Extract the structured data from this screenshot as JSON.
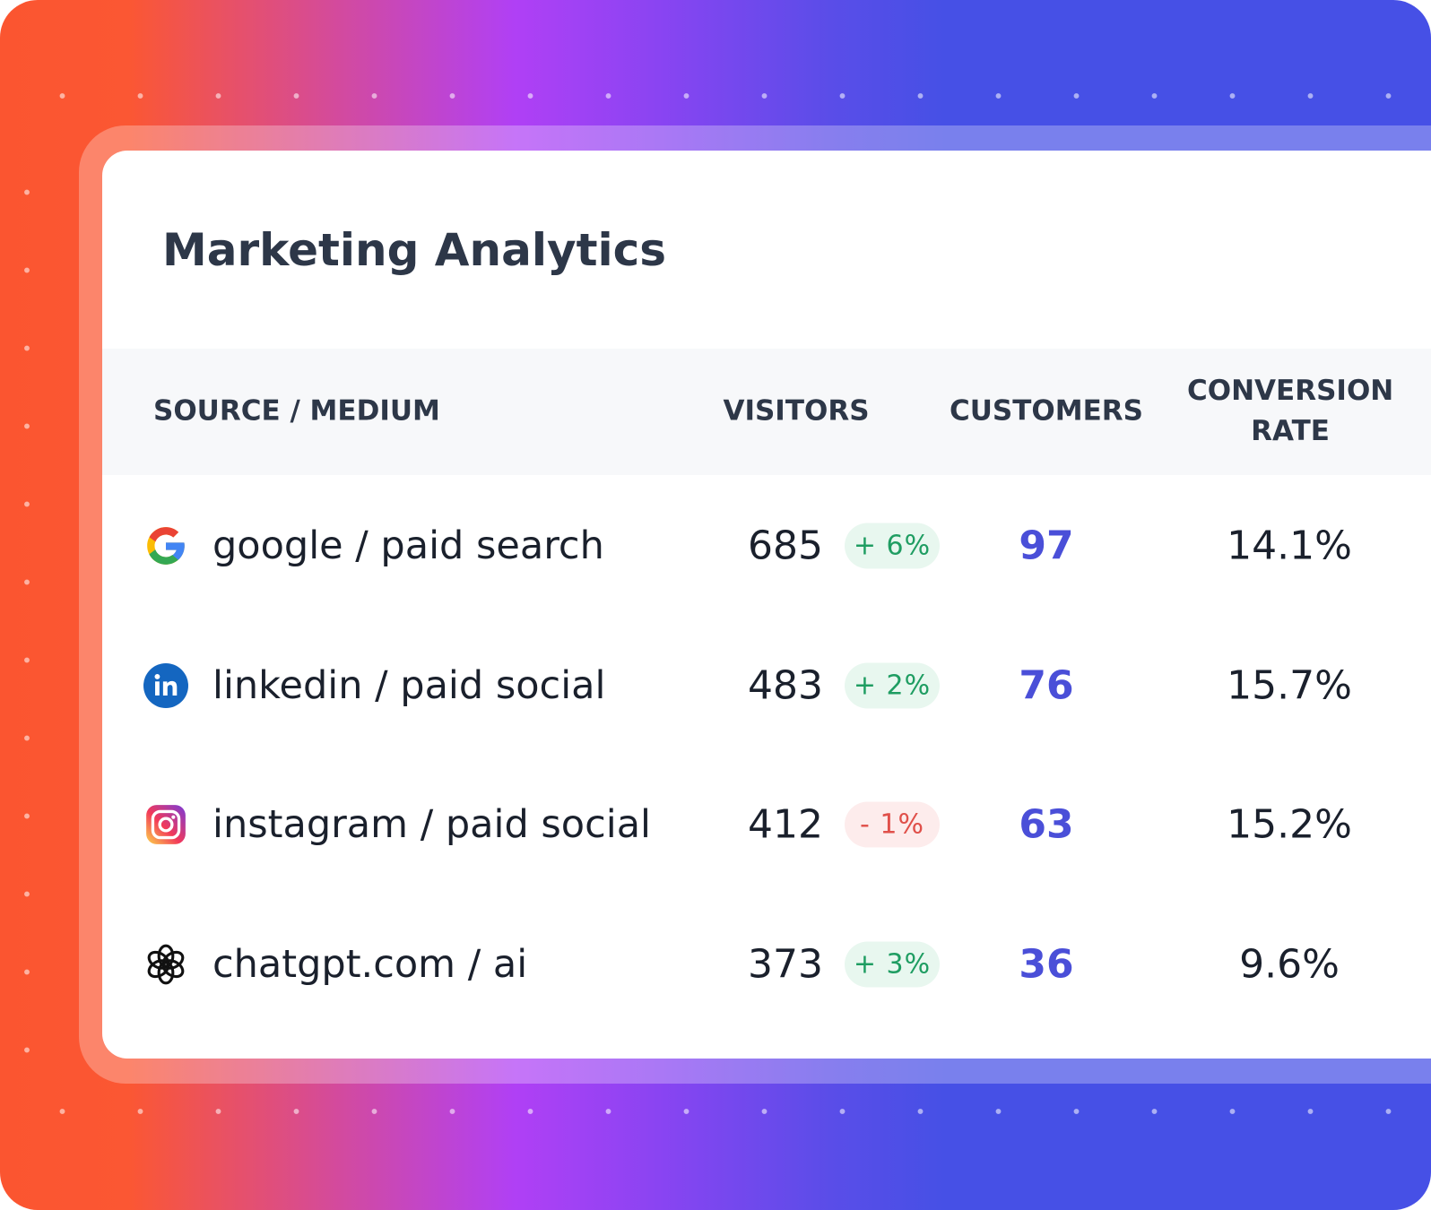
{
  "header": {
    "title": "Marketing Analytics"
  },
  "table": {
    "columns": [
      "SOURCE / MEDIUM",
      "VISITORS",
      "CUSTOMERS",
      "CONVERSION RATE"
    ],
    "rows": [
      {
        "source": "google / paid search",
        "visitors": "685",
        "change": "+ 6%",
        "customers": "97",
        "conversion_rate": "14.1%"
      },
      {
        "source": "linkedin / paid social",
        "visitors": "483",
        "change": "+ 2%",
        "customers": "76",
        "conversion_rate": "15.7%"
      },
      {
        "source": "instagram / paid social",
        "visitors": "412",
        "change": "- 1%",
        "customers": "63",
        "conversion_rate": "15.2%"
      },
      {
        "source": "chatgpt.com / ai",
        "visitors": "373",
        "change": "+ 3%",
        "customers": "36",
        "conversion_rate": "9.6%"
      }
    ]
  }
}
